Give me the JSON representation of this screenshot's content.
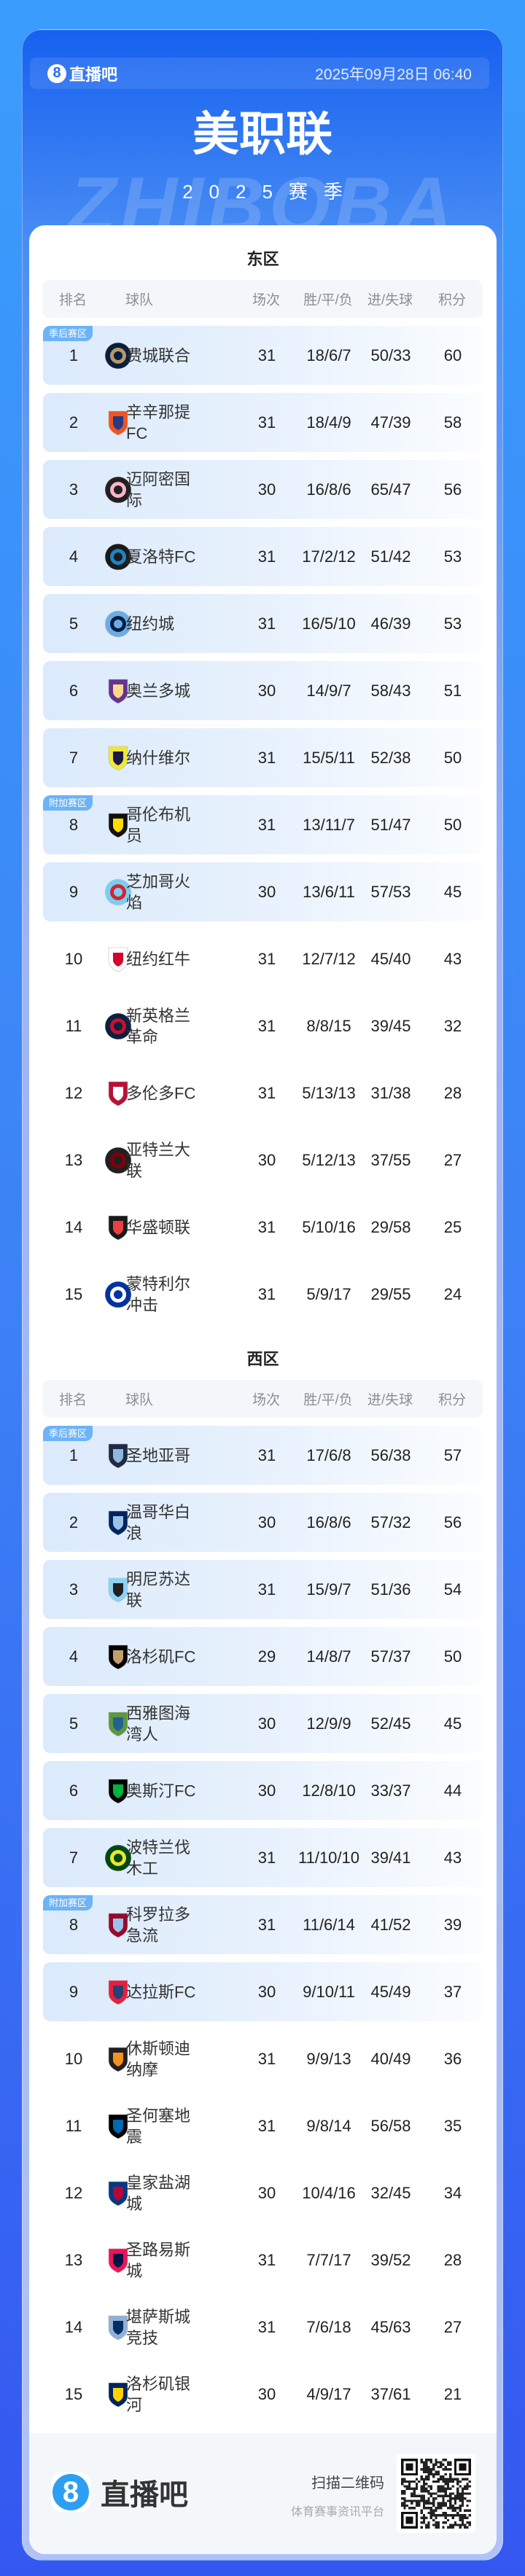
{
  "header": {
    "brand": "直播吧",
    "brand_mark": "8",
    "datetime": "2025年09月28日 06:40"
  },
  "title": "美职联",
  "subtitle": "2025赛季",
  "watermark": "ZHIBOBA",
  "columns": {
    "rank": "排名",
    "team": "球队",
    "played": "场次",
    "wdl": "胜/平/负",
    "goals": "进/失球",
    "points": "积分"
  },
  "zones": [
    {
      "label": "季后赛区",
      "from": 1,
      "to": 7,
      "color": "#6cb3f7"
    },
    {
      "label": "附加赛区",
      "from": 8,
      "to": 9,
      "color": "#6cb3f7"
    }
  ],
  "conferences": [
    {
      "name": "东区",
      "teams": [
        {
          "rank": "1",
          "team": "费城联合",
          "played": "31",
          "wdl": "18/6/7",
          "goals": "50/33",
          "points": "60",
          "logo": {
            "shape": "circle",
            "c1": "#0a1e3c",
            "c2": "#b19b69"
          }
        },
        {
          "rank": "2",
          "team": "辛辛那提FC",
          "played": "31",
          "wdl": "18/4/9",
          "goals": "47/39",
          "points": "58",
          "logo": {
            "shape": "shield",
            "c1": "#f05323",
            "c2": "#263b80"
          }
        },
        {
          "rank": "3",
          "team": "迈阿密国际",
          "played": "30",
          "wdl": "16/8/6",
          "goals": "65/47",
          "points": "56",
          "logo": {
            "shape": "circle",
            "c1": "#231f20",
            "c2": "#f7b5cd"
          }
        },
        {
          "rank": "4",
          "team": "夏洛特FC",
          "played": "31",
          "wdl": "17/2/12",
          "goals": "51/42",
          "points": "53",
          "logo": {
            "shape": "circle",
            "c1": "#1a1a1a",
            "c2": "#1a85c8"
          }
        },
        {
          "rank": "5",
          "team": "纽约城",
          "played": "31",
          "wdl": "16/5/10",
          "goals": "46/39",
          "points": "53",
          "logo": {
            "shape": "circle",
            "c1": "#6cace4",
            "c2": "#041e42"
          }
        },
        {
          "rank": "6",
          "team": "奥兰多城",
          "played": "30",
          "wdl": "14/9/7",
          "goals": "58/43",
          "points": "51",
          "logo": {
            "shape": "shield",
            "c1": "#633492",
            "c2": "#fdd78a"
          }
        },
        {
          "rank": "7",
          "team": "纳什维尔",
          "played": "31",
          "wdl": "15/5/11",
          "goals": "52/38",
          "points": "50",
          "logo": {
            "shape": "shield",
            "c1": "#ece83a",
            "c2": "#1f1646"
          }
        },
        {
          "rank": "8",
          "team": "哥伦布机员",
          "played": "31",
          "wdl": "13/11/7",
          "goals": "51/47",
          "points": "50",
          "logo": {
            "shape": "shield",
            "c1": "#111111",
            "c2": "#fedd00"
          }
        },
        {
          "rank": "9",
          "team": "芝加哥火焰",
          "played": "30",
          "wdl": "13/6/11",
          "goals": "57/53",
          "points": "45",
          "logo": {
            "shape": "circle",
            "c1": "#7ccdef",
            "c2": "#d22630"
          }
        },
        {
          "rank": "10",
          "team": "纽约红牛",
          "played": "31",
          "wdl": "12/7/12",
          "goals": "45/40",
          "points": "43",
          "logo": {
            "shape": "shield",
            "c1": "#ffffff",
            "c2": "#d6002e"
          }
        },
        {
          "rank": "11",
          "team": "新英格兰革命",
          "played": "31",
          "wdl": "8/8/15",
          "goals": "39/45",
          "points": "32",
          "logo": {
            "shape": "circle",
            "c1": "#0a2240",
            "c2": "#ce0e2d"
          }
        },
        {
          "rank": "12",
          "team": "多伦多FC",
          "played": "31",
          "wdl": "5/13/13",
          "goals": "31/38",
          "points": "28",
          "logo": {
            "shape": "shield",
            "c1": "#b81137",
            "c2": "#ffffff"
          }
        },
        {
          "rank": "13",
          "team": "亚特兰大联",
          "played": "30",
          "wdl": "5/12/13",
          "goals": "37/55",
          "points": "27",
          "logo": {
            "shape": "circle",
            "c1": "#221f1f",
            "c2": "#80000a"
          }
        },
        {
          "rank": "14",
          "team": "华盛顿联",
          "played": "31",
          "wdl": "5/10/16",
          "goals": "29/58",
          "points": "25",
          "logo": {
            "shape": "shield",
            "c1": "#1a1a1a",
            "c2": "#ef3e42"
          }
        },
        {
          "rank": "15",
          "team": "蒙特利尔冲击",
          "played": "31",
          "wdl": "5/9/17",
          "goals": "29/55",
          "points": "24",
          "logo": {
            "shape": "circle",
            "c1": "#0033a1",
            "c2": "#ffffff"
          }
        }
      ]
    },
    {
      "name": "西区",
      "teams": [
        {
          "rank": "1",
          "team": "圣地亚哥",
          "played": "31",
          "wdl": "17/6/8",
          "goals": "56/38",
          "points": "57",
          "logo": {
            "shape": "shield",
            "c1": "#1f2a44",
            "c2": "#8fb8de"
          }
        },
        {
          "rank": "2",
          "team": "温哥华白浪",
          "played": "30",
          "wdl": "16/8/6",
          "goals": "57/32",
          "points": "56",
          "logo": {
            "shape": "shield",
            "c1": "#00245e",
            "c2": "#9dc2ea"
          }
        },
        {
          "rank": "3",
          "team": "明尼苏达联",
          "played": "31",
          "wdl": "15/9/7",
          "goals": "51/36",
          "points": "54",
          "logo": {
            "shape": "shield",
            "c1": "#8cd2f4",
            "c2": "#231f20"
          }
        },
        {
          "rank": "4",
          "team": "洛杉矶FC",
          "played": "29",
          "wdl": "14/8/7",
          "goals": "57/37",
          "points": "50",
          "logo": {
            "shape": "shield",
            "c1": "#000000",
            "c2": "#c39e6d"
          }
        },
        {
          "rank": "5",
          "team": "西雅图海湾人",
          "played": "30",
          "wdl": "12/9/9",
          "goals": "52/45",
          "points": "45",
          "logo": {
            "shape": "shield",
            "c1": "#5d9741",
            "c2": "#236192"
          }
        },
        {
          "rank": "6",
          "team": "奥斯汀FC",
          "played": "30",
          "wdl": "12/8/10",
          "goals": "33/37",
          "points": "44",
          "logo": {
            "shape": "shield",
            "c1": "#000000",
            "c2": "#00b140"
          }
        },
        {
          "rank": "7",
          "team": "波特兰伐木工",
          "played": "31",
          "wdl": "11/10/10",
          "goals": "39/41",
          "points": "43",
          "logo": {
            "shape": "circle",
            "c1": "#004812",
            "c2": "#ebe72b"
          }
        },
        {
          "rank": "8",
          "team": "科罗拉多急流",
          "played": "31",
          "wdl": "11/6/14",
          "goals": "41/52",
          "points": "39",
          "logo": {
            "shape": "shield",
            "c1": "#960a2c",
            "c2": "#9cc2ea"
          }
        },
        {
          "rank": "9",
          "team": "达拉斯FC",
          "played": "30",
          "wdl": "9/10/11",
          "goals": "45/49",
          "points": "37",
          "logo": {
            "shape": "shield",
            "c1": "#e81f3e",
            "c2": "#2a4076"
          }
        },
        {
          "rank": "10",
          "team": "休斯顿迪纳摩",
          "played": "31",
          "wdl": "9/9/13",
          "goals": "40/49",
          "points": "36",
          "logo": {
            "shape": "shield",
            "c1": "#231f20",
            "c2": "#f4911e"
          }
        },
        {
          "rank": "11",
          "team": "圣何塞地震",
          "played": "31",
          "wdl": "9/8/14",
          "goals": "56/58",
          "points": "35",
          "logo": {
            "shape": "shield",
            "c1": "#000000",
            "c2": "#0067b1"
          }
        },
        {
          "rank": "12",
          "team": "皇家盐湖城",
          "played": "30",
          "wdl": "10/4/16",
          "goals": "32/45",
          "points": "34",
          "logo": {
            "shape": "shield",
            "c1": "#013a81",
            "c2": "#b30838"
          }
        },
        {
          "rank": "13",
          "team": "圣路易斯城",
          "played": "31",
          "wdl": "7/7/17",
          "goals": "39/52",
          "points": "28",
          "logo": {
            "shape": "shield",
            "c1": "#ec1458",
            "c2": "#001544"
          }
        },
        {
          "rank": "14",
          "team": "堪萨斯城竞技",
          "played": "31",
          "wdl": "7/6/18",
          "goals": "45/63",
          "points": "27",
          "logo": {
            "shape": "shield",
            "c1": "#91b0d5",
            "c2": "#002f65"
          }
        },
        {
          "rank": "15",
          "team": "洛杉矶银河",
          "played": "30",
          "wdl": "4/9/17",
          "goals": "37/61",
          "points": "21",
          "logo": {
            "shape": "shield",
            "c1": "#00245d",
            "c2": "#ffd200"
          }
        }
      ]
    }
  ],
  "footer": {
    "brand": "直播吧",
    "brand_mark": "8",
    "scan": "扫描二维码",
    "slogan": "体育赛事资讯平台"
  }
}
